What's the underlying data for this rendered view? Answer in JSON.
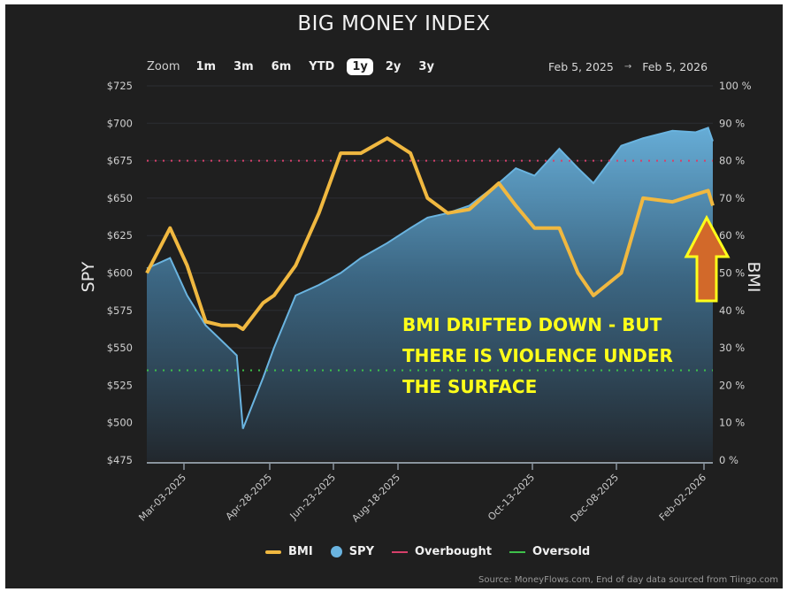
{
  "title": "BIG MONEY INDEX",
  "zoom": {
    "label": "Zoom",
    "buttons": [
      "1m",
      "3m",
      "6m",
      "YTD",
      "1y",
      "2y",
      "3y"
    ],
    "active": "1y"
  },
  "date_range": {
    "from": "Feb 5, 2025",
    "arrow": "→",
    "to": "Feb 5, 2026"
  },
  "legend": [
    {
      "name": "BMI",
      "color": "#f0b840",
      "shape": "line"
    },
    {
      "name": "SPY",
      "color": "#6ab4e0",
      "shape": "circle"
    },
    {
      "name": "Overbought",
      "color": "#d6406a",
      "shape": "line"
    },
    {
      "name": "Oversold",
      "color": "#3ec04a",
      "shape": "line"
    }
  ],
  "source": "Source: MoneyFlows.com, End of day data sourced from Tiingo.com",
  "annotation": {
    "lines": [
      "BMI DRIFTED DOWN - BUT",
      "THERE IS VIOLENCE UNDER",
      "THE SURFACE"
    ],
    "color": "#ffff1a",
    "arrow": {
      "fill": "#d2692a",
      "stroke": "#ffff1a",
      "direction": "up"
    }
  },
  "colors": {
    "background": "#1f1f1f",
    "bmi": "#f0b840",
    "spy_line": "#6ab4e0",
    "overbought": "#d6406a",
    "oversold": "#3ec04a"
  },
  "chart_data": {
    "type": "line",
    "title": "BIG MONEY INDEX",
    "xlabel": "",
    "ylabel": "SPY",
    "ylabel_right": "BMI",
    "ylim": [
      475,
      725
    ],
    "ylim_right": [
      0,
      100
    ],
    "yticks_left": [
      "$725",
      "$700",
      "$675",
      "$650",
      "$625",
      "$600",
      "$575",
      "$550",
      "$525",
      "$500",
      "$475"
    ],
    "yticks_right": [
      "100 %",
      "90 %",
      "80 %",
      "70 %",
      "60 %",
      "50 %",
      "40 %",
      "30 %",
      "20 %",
      "10 %",
      "0 %"
    ],
    "xticks": [
      "Mar-03-2025",
      "Apr-28-2025",
      "Jun-23-2025",
      "Aug-18-2025",
      "Oct-13-2025",
      "Dec-08-2025",
      "Feb-02-2026"
    ],
    "x": [
      "2025-02-05",
      "2025-02-20",
      "2025-03-03",
      "2025-03-15",
      "2025-03-25",
      "2025-04-04",
      "2025-04-08",
      "2025-04-21",
      "2025-04-28",
      "2025-05-12",
      "2025-05-27",
      "2025-06-10",
      "2025-06-23",
      "2025-07-10",
      "2025-07-25",
      "2025-08-05",
      "2025-08-18",
      "2025-09-01",
      "2025-09-20",
      "2025-10-01",
      "2025-10-13",
      "2025-10-29",
      "2025-11-10",
      "2025-11-20",
      "2025-12-08",
      "2025-12-22",
      "2026-01-10",
      "2026-01-25",
      "2026-02-02",
      "2026-02-05"
    ],
    "series": [
      {
        "name": "SPY",
        "axis": "left",
        "style": "area",
        "values": [
          603,
          610,
          585,
          565,
          555,
          545,
          496,
          530,
          550,
          585,
          592,
          600,
          610,
          620,
          630,
          637,
          640,
          645,
          660,
          670,
          665,
          683,
          670,
          660,
          685,
          690,
          695,
          694,
          697,
          688
        ]
      },
      {
        "name": "BMI",
        "axis": "right",
        "style": "line",
        "values": [
          50,
          62,
          52,
          37,
          36,
          36,
          35,
          42,
          44,
          52,
          66,
          82,
          82,
          86,
          82,
          70,
          66,
          67,
          74,
          68,
          62,
          62,
          50,
          44,
          50,
          70,
          69,
          71,
          72,
          68
        ]
      },
      {
        "name": "Overbought",
        "axis": "right",
        "style": "dotted",
        "values": [
          80
        ]
      },
      {
        "name": "Oversold",
        "axis": "right",
        "style": "dotted",
        "values": [
          24
        ]
      }
    ],
    "grid": true,
    "legend_position": "bottom"
  }
}
